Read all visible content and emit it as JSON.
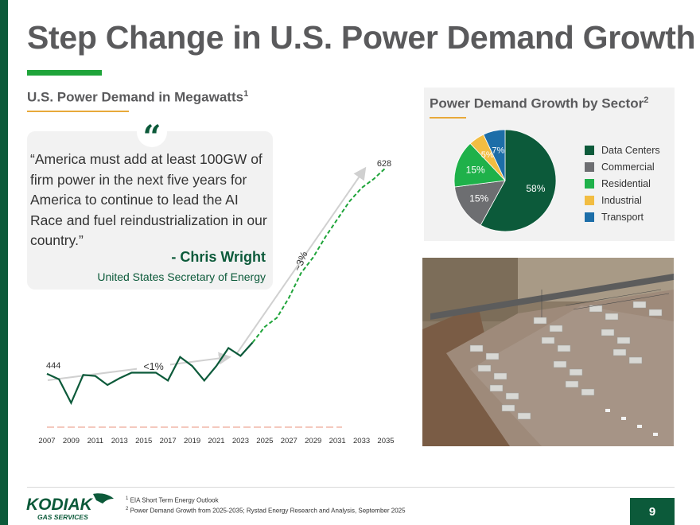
{
  "slide": {
    "title": "Step Change in U.S. Power Demand Growth",
    "subtitle": "U.S. Power Demand in Megawatts",
    "subtitle_sup": "1",
    "page_number": "9",
    "accent_color": "#0c5a3a",
    "bright_green": "#1fa43a",
    "orange": "#e8a93a"
  },
  "quote": {
    "mark": "“",
    "text": "“America must add at least 100GW of firm power in the next five years for America to continue to lead the AI Race and fuel reindustrialization in our country.”",
    "author": "- Chris Wright",
    "role": "United States Secretary of Energy"
  },
  "chart_data": [
    {
      "type": "line",
      "title": "U.S. Power Demand in Megawatts",
      "x": [
        2007,
        2008,
        2009,
        2010,
        2011,
        2012,
        2013,
        2014,
        2015,
        2016,
        2017,
        2018,
        2019,
        2020,
        2021,
        2022,
        2023,
        2024,
        2025,
        2026,
        2027,
        2028,
        2029,
        2030,
        2031,
        2032,
        2033,
        2034,
        2035
      ],
      "series": [
        {
          "name": "Historical",
          "style": "solid",
          "color": "#0c5a3a",
          "x": [
            2007,
            2008,
            2009,
            2010,
            2011,
            2012,
            2013,
            2014,
            2015,
            2016,
            2017,
            2018,
            2019,
            2020,
            2021,
            2022,
            2023,
            2024
          ],
          "values": [
            444,
            439,
            418,
            443,
            442,
            434,
            440,
            445,
            445,
            445,
            438,
            459,
            451,
            438,
            451,
            467,
            460,
            472
          ]
        },
        {
          "name": "Forecast",
          "style": "dashed",
          "color": "#1fa43a",
          "x": [
            2024,
            2025,
            2026,
            2027,
            2028,
            2029,
            2030,
            2031,
            2032,
            2033,
            2034,
            2035
          ],
          "values": [
            472,
            486,
            494,
            512,
            534,
            548,
            566,
            582,
            598,
            610,
            618,
            628
          ]
        }
      ],
      "tick_labels": [
        "2007",
        "2009",
        "2011",
        "2013",
        "2015",
        "2017",
        "2019",
        "2021",
        "2023",
        "2025",
        "2027",
        "2029",
        "2031",
        "2033",
        "2035"
      ],
      "data_labels": {
        "start": "444",
        "end": "628"
      },
      "annotations": {
        "low_growth": "<1%",
        "high_growth": "~3%"
      },
      "ylim": [
        380,
        640
      ],
      "grid": false
    },
    {
      "type": "pie",
      "title": "Power Demand Growth by Sector",
      "title_sup": "2",
      "categories": [
        "Data Centers",
        "Commercial",
        "Residential",
        "Industrial",
        "Transport"
      ],
      "values": [
        58,
        15,
        15,
        5,
        7
      ],
      "labels": [
        "58%",
        "15%",
        "15%",
        "5%",
        "7%"
      ],
      "colors": [
        "#0c5a3a",
        "#6d6e71",
        "#1fb14a",
        "#f2bd42",
        "#1d6ea8"
      ],
      "legend": "right"
    }
  ],
  "photo": {
    "alt": "Aerial photo of compression and power generation site"
  },
  "footer": {
    "logo_text": "KODIAK",
    "logo_sub": "GAS SERVICES",
    "note1_sup": "1",
    "note1": "EIA Short Term Energy Outlook",
    "note2_sup": "2",
    "note2": "Power Demand Growth from 2025-2035; Rystad Energy Research and Analysis, September 2025"
  }
}
